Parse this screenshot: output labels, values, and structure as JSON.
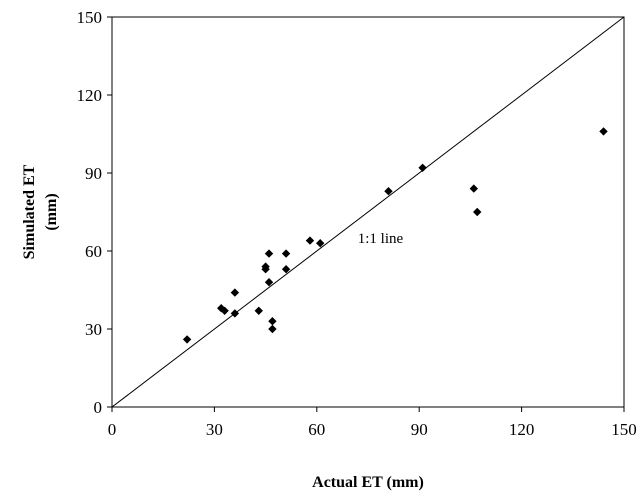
{
  "chart_data": {
    "type": "scatter",
    "title": "",
    "xlabel": "Actual ET (mm)",
    "ylabel": "Simulated ET (mm)",
    "xlim": [
      0,
      150
    ],
    "ylim": [
      0,
      150
    ],
    "xticks": [
      0,
      30,
      60,
      90,
      120,
      150
    ],
    "yticks": [
      0,
      30,
      60,
      90,
      120,
      150
    ],
    "grid": false,
    "legend": "none",
    "marker": "diamond",
    "marker_color": "#000000",
    "reference_line": {
      "from": [
        0,
        0
      ],
      "to": [
        150,
        150
      ],
      "label": "1:1 line",
      "label_at": [
        72,
        63
      ]
    },
    "points": [
      {
        "x": 22,
        "y": 26
      },
      {
        "x": 32,
        "y": 38
      },
      {
        "x": 33,
        "y": 37
      },
      {
        "x": 36,
        "y": 44
      },
      {
        "x": 36,
        "y": 36
      },
      {
        "x": 43,
        "y": 37
      },
      {
        "x": 45,
        "y": 54
      },
      {
        "x": 45,
        "y": 53
      },
      {
        "x": 46,
        "y": 59
      },
      {
        "x": 46,
        "y": 48
      },
      {
        "x": 47,
        "y": 33
      },
      {
        "x": 47,
        "y": 30
      },
      {
        "x": 51,
        "y": 59
      },
      {
        "x": 51,
        "y": 53
      },
      {
        "x": 58,
        "y": 64
      },
      {
        "x": 61,
        "y": 63
      },
      {
        "x": 81,
        "y": 83
      },
      {
        "x": 91,
        "y": 92
      },
      {
        "x": 106,
        "y": 84
      },
      {
        "x": 107,
        "y": 75
      },
      {
        "x": 144,
        "y": 106
      }
    ]
  }
}
